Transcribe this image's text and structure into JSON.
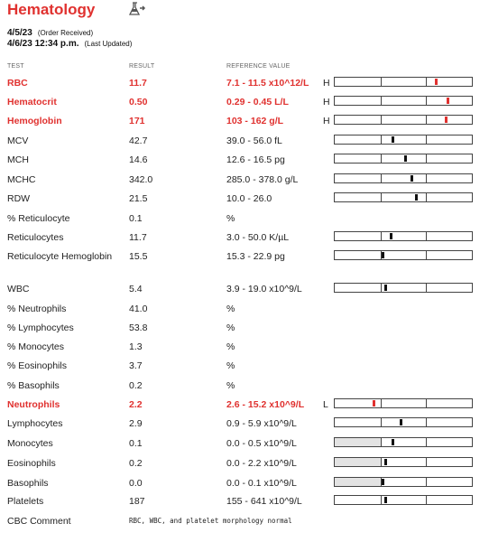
{
  "header": {
    "title": "Hematology",
    "icon": "lab-flask-icon",
    "order_date": "4/5/23",
    "order_note": "(Order Received)",
    "updated_date": "4/6/23 12:34 p.m.",
    "updated_note": "(Last Updated)"
  },
  "columns": {
    "test": "TEST",
    "result": "RESULT",
    "reference": "REFERENCE VALUE"
  },
  "colors": {
    "abnormal": "#e0312f",
    "normal": "#222222",
    "low_shade": "#e3e3e3"
  },
  "rows": [
    {
      "test": "RBC",
      "result": "11.7",
      "ref": "7.1 - 11.5 x10^12/L",
      "flag": "H",
      "abnormal": true,
      "bar": true,
      "marker": 0.74
    },
    {
      "test": "Hematocrit",
      "result": "0.50",
      "ref": "0.29 - 0.45 L/L",
      "flag": "H",
      "abnormal": true,
      "bar": true,
      "marker": 0.82
    },
    {
      "test": "Hemoglobin",
      "result": "171",
      "ref": "103 - 162 g/L",
      "flag": "H",
      "abnormal": true,
      "bar": true,
      "marker": 0.81
    },
    {
      "test": "MCV",
      "result": "42.7",
      "ref": "39.0 - 56.0 fL",
      "flag": "",
      "abnormal": false,
      "bar": true,
      "marker": 0.42
    },
    {
      "test": "MCH",
      "result": "14.6",
      "ref": "12.6 - 16.5 pg",
      "flag": "",
      "abnormal": false,
      "bar": true,
      "marker": 0.51
    },
    {
      "test": "MCHC",
      "result": "342.0",
      "ref": "285.0 - 378.0 g/L",
      "flag": "",
      "abnormal": false,
      "bar": true,
      "marker": 0.56
    },
    {
      "test": "RDW",
      "result": "21.5",
      "ref": "10.0 - 26.0",
      "flag": "",
      "abnormal": false,
      "bar": true,
      "marker": 0.59
    },
    {
      "test": "% Reticulocyte",
      "result": "0.1",
      "ref": "%",
      "flag": "",
      "abnormal": false,
      "bar": false
    },
    {
      "test": "Reticulocytes",
      "result": "11.7",
      "ref": "3.0 - 50.0 K/µL",
      "flag": "",
      "abnormal": false,
      "bar": true,
      "marker": 0.41
    },
    {
      "test": "Reticulocyte Hemoglobin",
      "result": "15.5",
      "ref": "15.3 - 22.9 pg",
      "flag": "",
      "abnormal": false,
      "bar": true,
      "marker": 0.35
    },
    {
      "test": "WBC",
      "result": "5.4",
      "ref": "3.9 - 19.0 x10^9/L",
      "flag": "",
      "abnormal": false,
      "bar": true,
      "marker": 0.37
    },
    {
      "test": "% Neutrophils",
      "result": "41.0",
      "ref": "%",
      "flag": "",
      "abnormal": false,
      "bar": false
    },
    {
      "test": "% Lymphocytes",
      "result": "53.8",
      "ref": "%",
      "flag": "",
      "abnormal": false,
      "bar": false
    },
    {
      "test": "% Monocytes",
      "result": "1.3",
      "ref": "%",
      "flag": "",
      "abnormal": false,
      "bar": false
    },
    {
      "test": "% Eosinophils",
      "result": "3.7",
      "ref": "%",
      "flag": "",
      "abnormal": false,
      "bar": false
    },
    {
      "test": "% Basophils",
      "result": "0.2",
      "ref": "%",
      "flag": "",
      "abnormal": false,
      "bar": false
    },
    {
      "test": "Neutrophils",
      "result": "2.2",
      "ref": "2.6 - 15.2 x10^9/L",
      "flag": "L",
      "abnormal": true,
      "bar": true,
      "marker": 0.28
    },
    {
      "test": "Lymphocytes",
      "result": "2.9",
      "ref": "0.9 - 5.9 x10^9/L",
      "flag": "",
      "abnormal": false,
      "bar": true,
      "marker": 0.48
    },
    {
      "test": "Monocytes",
      "result": "0.1",
      "ref": "0.0 - 0.5 x10^9/L",
      "flag": "",
      "abnormal": false,
      "bar": true,
      "marker": 0.42,
      "low_shade": true
    },
    {
      "test": "Eosinophils",
      "result": "0.2",
      "ref": "0.0 - 2.2 x10^9/L",
      "flag": "",
      "abnormal": false,
      "bar": true,
      "marker": 0.37,
      "low_shade": true
    },
    {
      "test": "Basophils",
      "result": "0.0",
      "ref": "0.0 - 0.1 x10^9/L",
      "flag": "",
      "abnormal": false,
      "bar": true,
      "marker": 0.35,
      "low_shade": true
    },
    {
      "test": "Platelets",
      "result": "187",
      "ref": "155 - 641 x10^9/L",
      "flag": "",
      "abnormal": false,
      "bar": true,
      "marker": 0.37
    }
  ],
  "comment": {
    "label": "CBC Comment",
    "text": "RBC, WBC, and platelet morphology normal"
  }
}
